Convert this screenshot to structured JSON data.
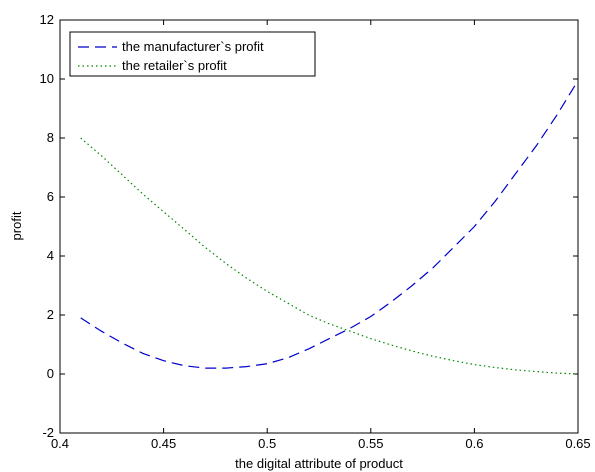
{
  "chart_data": {
    "type": "line",
    "title": "",
    "xlabel": "the digital attribute of product",
    "ylabel": "profit",
    "xlim": [
      0.4,
      0.65
    ],
    "ylim": [
      -2,
      12
    ],
    "x_ticks": [
      0.4,
      0.45,
      0.5,
      0.55,
      0.6,
      0.65
    ],
    "x_tick_labels": [
      "0.4",
      "0.45",
      "0.5",
      "0.55",
      "0.6",
      "0.65"
    ],
    "y_ticks": [
      -2,
      0,
      2,
      4,
      6,
      8,
      10,
      12
    ],
    "y_tick_labels": [
      "-2",
      "0",
      "2",
      "4",
      "6",
      "8",
      "10",
      "12"
    ],
    "grid": false,
    "legend_position": "top-left",
    "series": [
      {
        "name": "the manufacturer`s profit",
        "style": "dashed",
        "color": "#0000cc",
        "x": [
          0.41,
          0.42,
          0.43,
          0.44,
          0.45,
          0.46,
          0.47,
          0.48,
          0.49,
          0.5,
          0.51,
          0.52,
          0.53,
          0.54,
          0.55,
          0.56,
          0.57,
          0.58,
          0.59,
          0.6,
          0.61,
          0.62,
          0.63,
          0.64,
          0.65
        ],
        "y": [
          1.9,
          1.45,
          1.05,
          0.7,
          0.45,
          0.28,
          0.2,
          0.2,
          0.25,
          0.35,
          0.55,
          0.85,
          1.2,
          1.55,
          1.95,
          2.45,
          3.0,
          3.6,
          4.3,
          5.0,
          5.85,
          6.8,
          7.75,
          8.8,
          9.95
        ]
      },
      {
        "name": "the retailer`s profit",
        "style": "dotted",
        "color": "#008800",
        "x": [
          0.41,
          0.42,
          0.43,
          0.44,
          0.45,
          0.46,
          0.47,
          0.48,
          0.49,
          0.5,
          0.51,
          0.52,
          0.53,
          0.54,
          0.55,
          0.56,
          0.57,
          0.58,
          0.59,
          0.6,
          0.61,
          0.62,
          0.63,
          0.64,
          0.65
        ],
        "y": [
          8.0,
          7.4,
          6.75,
          6.1,
          5.5,
          4.9,
          4.3,
          3.75,
          3.25,
          2.8,
          2.4,
          2.0,
          1.7,
          1.45,
          1.2,
          0.98,
          0.78,
          0.6,
          0.45,
          0.32,
          0.22,
          0.14,
          0.08,
          0.03,
          0.0
        ]
      }
    ]
  }
}
